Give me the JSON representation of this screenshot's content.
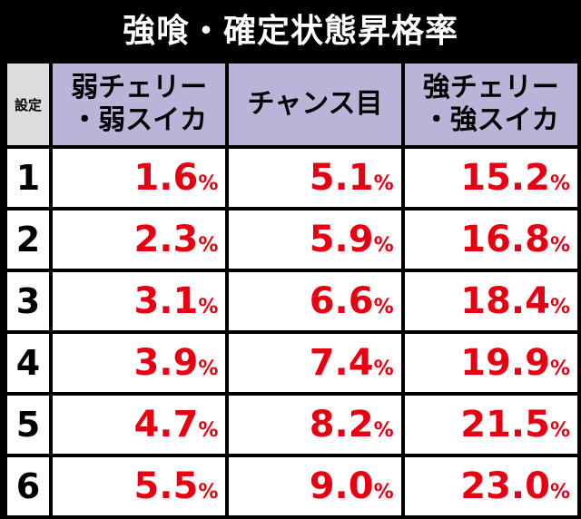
{
  "title": "強喰・確定状態昇格率",
  "header": {
    "setting": "設定",
    "col1_line1": "弱チェリー",
    "col1_line2": "・弱スイカ",
    "col2": "チャンス目",
    "col3_line1": "強チェリー",
    "col3_line2": "・強スイカ"
  },
  "percent_sign": "%",
  "rows": [
    {
      "setting": "1",
      "c1": "1.6",
      "c2": "5.1",
      "c3": "15.2"
    },
    {
      "setting": "2",
      "c1": "2.3",
      "c2": "5.9",
      "c3": "16.8"
    },
    {
      "setting": "3",
      "c1": "3.1",
      "c2": "6.6",
      "c3": "18.4"
    },
    {
      "setting": "4",
      "c1": "3.9",
      "c2": "7.4",
      "c3": "19.9"
    },
    {
      "setting": "5",
      "c1": "4.7",
      "c2": "8.2",
      "c3": "21.5"
    },
    {
      "setting": "6",
      "c1": "5.5",
      "c2": "9.0",
      "c3": "23.0"
    }
  ],
  "colors": {
    "header_bg": "#b9b4d8",
    "value_text": "#e60012",
    "setting_header_bg": "#dddddd"
  }
}
